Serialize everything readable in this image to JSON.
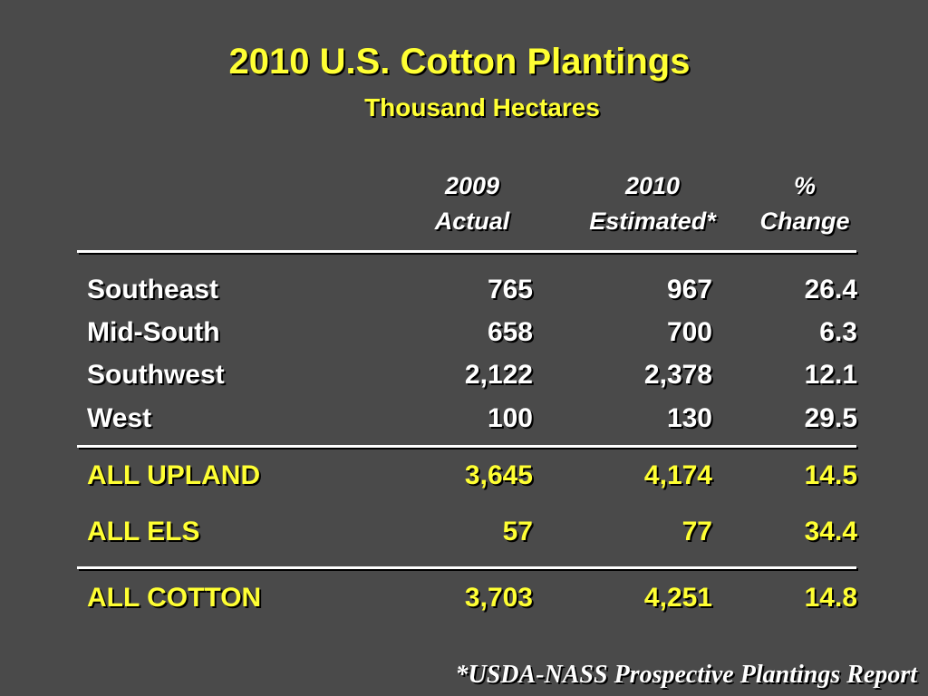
{
  "header": {
    "title": "2010 U.S. Cotton Plantings",
    "subtitle": "Thousand Hectares"
  },
  "table": {
    "columns": [
      [
        "2009",
        "Actual"
      ],
      [
        "2010",
        "Estimated*"
      ],
      [
        "%",
        "Change"
      ]
    ],
    "rows": [
      [
        "Southeast",
        "765",
        "967",
        "26.4"
      ],
      [
        "Mid-South",
        "658",
        "700",
        "6.3"
      ],
      [
        "Southwest",
        "2,122",
        "2,378",
        "12.1"
      ],
      [
        "West",
        "100",
        "130",
        "29.5"
      ],
      [
        "ALL UPLAND",
        "3,645",
        "4,174",
        "14.5"
      ],
      [
        "ALL ELS",
        "57",
        "77",
        "34.4"
      ],
      [
        "ALL COTTON",
        "3,703",
        "4,251",
        "14.8"
      ]
    ]
  },
  "footnote": "*USDA-NASS Prospective Plantings Report"
}
